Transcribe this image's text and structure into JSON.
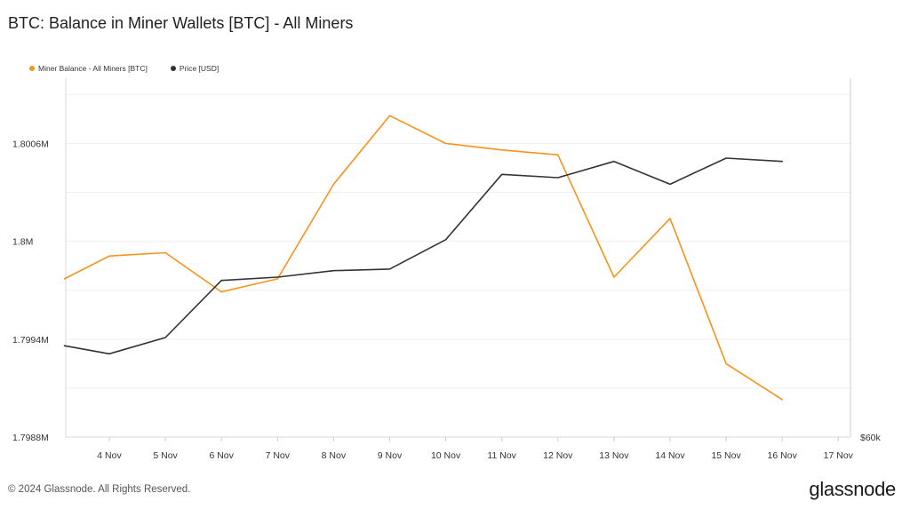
{
  "header": {
    "title": "BTC: Balance in Miner Wallets [BTC] - All Miners"
  },
  "legend": [
    {
      "label": "Miner Balance - All Miners [BTC]",
      "color": "#f7931a"
    },
    {
      "label": "Price [USD]",
      "color": "#333333"
    }
  ],
  "footer": {
    "copyright": "© 2024 Glassnode. All Rights Reserved.",
    "brand": "glassnode"
  },
  "chart_data": {
    "type": "line",
    "title": "BTC: Balance in Miner Wallets [BTC] - All Miners",
    "categories": [
      "4 Nov",
      "5 Nov",
      "6 Nov",
      "7 Nov",
      "8 Nov",
      "9 Nov",
      "10 Nov",
      "11 Nov",
      "12 Nov",
      "13 Nov",
      "14 Nov",
      "15 Nov",
      "16 Nov",
      "17 Nov"
    ],
    "x_start": 3.2,
    "left_axis": {
      "ticks": [
        1798800,
        1799400,
        1800000,
        1800600
      ],
      "tick_labels": [
        "1.7988M",
        "1.7994M",
        "1.8M",
        "1.8006M"
      ],
      "ylim": [
        1798800,
        1801000
      ]
    },
    "right_axis": {
      "tick_labels": [
        "$60k"
      ]
    },
    "grid": true,
    "legend_position": "top-left",
    "series": [
      {
        "name": "Miner Balance - All Miners [BTC]",
        "axis": "left",
        "color": "#f7931a",
        "x": [
          3.2,
          4,
          5,
          6,
          7,
          8,
          9,
          10,
          11,
          12,
          13,
          14,
          15,
          16
        ],
        "values": [
          1799770,
          1799910,
          1799930,
          1799690,
          1799770,
          1800350,
          1800770,
          1800600,
          1800560,
          1800530,
          1799780,
          1800140,
          1799250,
          1799030
        ]
      },
      {
        "name": "Price [USD]",
        "axis": "left",
        "color": "#333333",
        "x": [
          3.2,
          4,
          5,
          6,
          7,
          8,
          9,
          10,
          11,
          12,
          13,
          14,
          15,
          16
        ],
        "values": [
          1799360,
          1799310,
          1799410,
          1799760,
          1799780,
          1799820,
          1799830,
          1800010,
          1800410,
          1800390,
          1800490,
          1800350,
          1800510,
          1800490
        ]
      }
    ]
  }
}
